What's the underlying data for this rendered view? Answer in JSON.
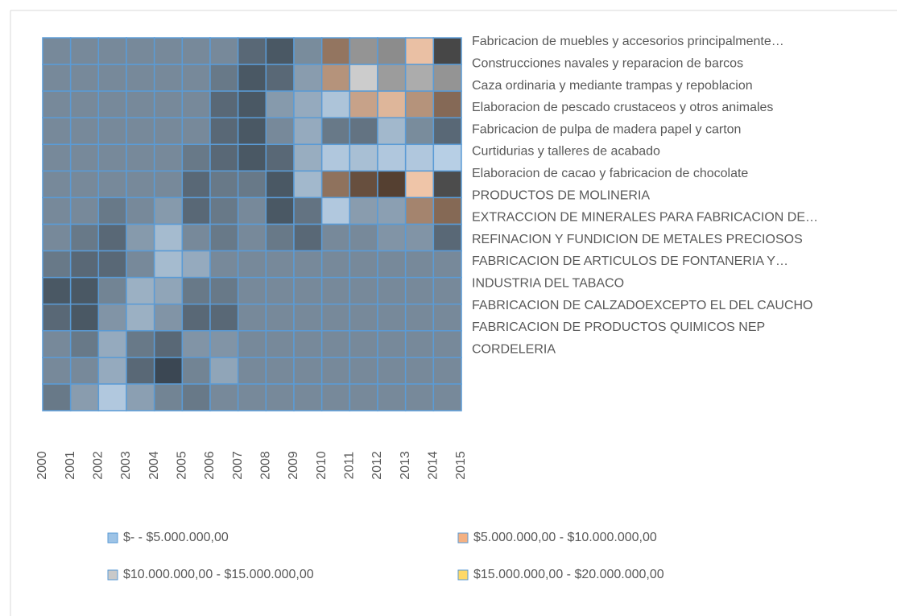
{
  "chart_data": {
    "type": "surface",
    "x": [
      "2000",
      "2001",
      "2002",
      "2003",
      "2004",
      "2005",
      "2006",
      "2007",
      "2008",
      "2009",
      "2010",
      "2011",
      "2012",
      "2013",
      "2014",
      "2015"
    ],
    "categories": [
      "Fabricacion de muebles y accesorios principalmente…",
      "Construcciones navales y reparacion de  barcos",
      "Caza ordinaria y mediante trampas y repoblacion",
      "Elaboracion de pescado crustaceos y otros animales",
      "Fabricacion de pulpa de madera papel y carton",
      "Curtidurias y talleres de acabado",
      "Elaboracion de cacao y fabricacion de chocolate",
      "PRODUCTOS DE MOLINERIA",
      "EXTRACCION DE MINERALES PARA FABRICACION DE…",
      "REFINACION Y FUNDICION DE METALES PRECIOSOS",
      "FABRICACION DE ARTICULOS DE FONTANERIA Y…",
      "INDUSTRIA DEL TABACO",
      "FABRICACION DE CALZADOEXCEPTO EL DEL CAUCHO",
      "FABRICACION DE PRODUCTOS QUIMICOS NEP",
      "CORDELERIA"
    ],
    "values": [
      [
        2500000,
        2500000,
        2500000,
        2500000,
        2500000,
        2500000,
        2500000,
        2500000,
        400000,
        2500000,
        400000,
        8000000,
        13000000,
        9000000,
        400000,
        14000000
      ],
      [
        2500000,
        2500000,
        2500000,
        2500000,
        2500000,
        2500000,
        2500000,
        2500000,
        400000,
        400000,
        7000000,
        13000000,
        17000000,
        11000000,
        18000000,
        9000000
      ],
      [
        2500000,
        2500000,
        2500000,
        2500000,
        2500000,
        2500000,
        2500000,
        400000,
        400000,
        4600000,
        400000,
        12000000,
        16000000,
        8000000,
        17000000,
        7000000
      ],
      [
        2500000,
        2500000,
        2500000,
        2500000,
        2500000,
        2500000,
        2500000,
        400000,
        2500000,
        4600000,
        4600000,
        400000,
        6000000,
        7000000,
        400000,
        2500000
      ],
      [
        2500000,
        2500000,
        2500000,
        2500000,
        2500000,
        2500000,
        2500000,
        400000,
        400000,
        2500000,
        2500000,
        400000,
        400000,
        2500000,
        400000,
        2500000
      ],
      [
        2500000,
        2500000,
        2500000,
        2500000,
        2500000,
        2500000,
        400000,
        2500000,
        400000,
        2500000,
        7000000,
        8000000,
        8000000,
        7000000,
        8000000,
        8000000
      ],
      [
        2500000,
        2500000,
        2500000,
        2500000,
        2500000,
        2500000,
        400000,
        4600000,
        400000,
        400000,
        6000000,
        7000000,
        400000,
        6000000,
        18000000,
        8000000
      ],
      [
        2500000,
        2500000,
        2500000,
        400000,
        4600000,
        2500000,
        400000,
        2500000,
        2500000,
        400000,
        400000,
        4600000,
        400000,
        6000000,
        400000,
        400000
      ],
      [
        2500000,
        2500000,
        400000,
        2500000,
        4600000,
        4600000,
        2500000,
        2500000,
        2500000,
        2500000,
        2500000,
        2500000,
        2500000,
        2500000,
        2500000,
        2500000
      ],
      [
        2500000,
        400000,
        2500000,
        400000,
        2500000,
        4600000,
        2500000,
        2500000,
        2500000,
        2500000,
        2500000,
        2500000,
        2500000,
        2500000,
        2500000,
        2500000
      ],
      [
        400000,
        400000,
        400000,
        6000000,
        6000000,
        400000,
        400000,
        2500000,
        2500000,
        2500000,
        2500000,
        2500000,
        2500000,
        2500000,
        2500000,
        2500000
      ],
      [
        4600000,
        400000,
        2500000,
        2500000,
        400000,
        4600000,
        400000,
        2500000,
        2500000,
        2500000,
        2500000,
        2500000,
        2500000,
        2500000,
        2500000,
        2500000
      ],
      [
        4600000,
        400000,
        4600000,
        4600000,
        400000,
        400000,
        6000000,
        2500000,
        2500000,
        2500000,
        2500000,
        2500000,
        2500000,
        2500000,
        2500000,
        2500000
      ],
      [
        4600000,
        400000,
        4600000,
        400000,
        400000,
        400000,
        2500000,
        2500000,
        2500000,
        2500000,
        2500000,
        2500000,
        2500000,
        2500000,
        2500000,
        2500000
      ],
      [
        2500000,
        400000,
        7000000,
        6000000,
        6000000,
        2500000,
        2500000,
        2500000,
        2500000,
        2500000,
        2500000,
        2500000,
        2500000,
        2500000,
        2500000,
        2500000
      ]
    ],
    "bands": [
      {
        "name": "$-   - $5.000.000,00",
        "color": "#9dc3e6",
        "range": [
          0,
          5000000
        ]
      },
      {
        "name": "$5.000.000,00 - $10.000.000,00",
        "color": "#f4b183",
        "range": [
          5000000,
          10000000
        ]
      },
      {
        "name": "$10.000.000,00 - $15.000.000,00",
        "color": "#c9c9c9",
        "range": [
          10000000,
          15000000
        ]
      },
      {
        "name": "$15.000.000,00 - $20.000.000,00",
        "color": "#ffd966",
        "range": [
          15000000,
          20000000
        ]
      }
    ]
  }
}
